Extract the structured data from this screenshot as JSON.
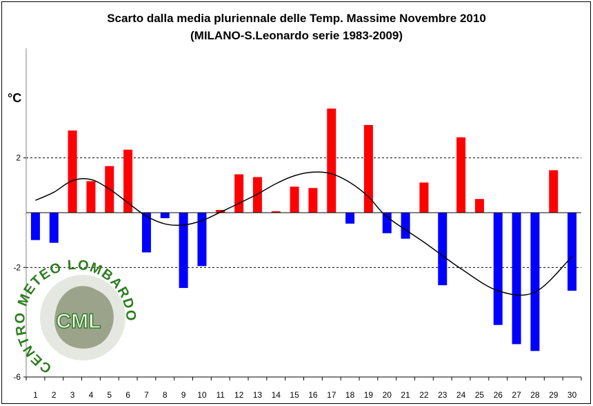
{
  "header": {
    "title": "Scarto dalla media pluriennale delle Temp. Massime Novembre 2010",
    "subtitle": "(MILANO-S.Leonardo serie 1983-2009)"
  },
  "axis": {
    "unit_label": "°C"
  },
  "logo": {
    "outer_text": "CENTRO METEO LOMBARDO",
    "inner_text": "CML",
    "color": "#2e7d1f"
  },
  "chart_data": {
    "type": "bar",
    "categories": [
      "1",
      "2",
      "3",
      "4",
      "5",
      "6",
      "7",
      "8",
      "9",
      "10",
      "11",
      "12",
      "13",
      "14",
      "15",
      "16",
      "17",
      "18",
      "19",
      "20",
      "21",
      "22",
      "23",
      "24",
      "25",
      "26",
      "27",
      "28",
      "29",
      "30"
    ],
    "values": [
      -1.0,
      -1.1,
      3.0,
      1.15,
      1.7,
      2.3,
      -1.45,
      -0.2,
      -2.75,
      -1.95,
      0.1,
      1.4,
      1.3,
      0.05,
      0.95,
      0.9,
      3.8,
      -0.4,
      3.2,
      -0.75,
      -0.95,
      1.1,
      -2.65,
      2.75,
      0.5,
      -4.1,
      -4.8,
      -5.05,
      1.55,
      -2.85
    ],
    "trend": [
      0.45,
      0.75,
      1.17,
      1.21,
      0.86,
      0.36,
      -0.13,
      -0.41,
      -0.45,
      -0.29,
      0.02,
      0.34,
      0.68,
      1.06,
      1.35,
      1.48,
      1.42,
      1.1,
      0.58,
      -0.15,
      -1.08,
      -2.05,
      -2.85,
      -2.9,
      -1.6
    ],
    "trend_x": [
      1,
      2,
      3,
      4,
      5,
      6,
      7,
      8,
      9,
      10,
      11,
      12,
      13,
      14,
      15,
      16,
      17,
      18,
      19,
      20,
      22,
      24,
      26,
      28,
      30
    ],
    "ylim": [
      -6,
      6
    ],
    "yticks": [
      2,
      -2,
      -6
    ],
    "grid": "dotted horizontal at tick values",
    "positive_color": "#ff0000",
    "negative_color": "#0000ff",
    "trend_color": "#000000"
  }
}
